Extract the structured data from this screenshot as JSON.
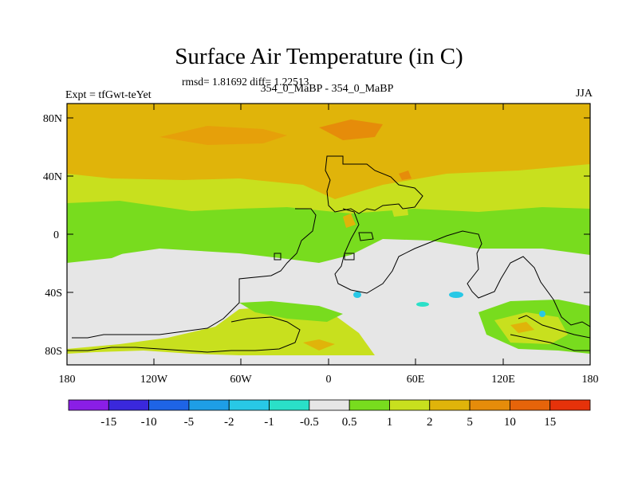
{
  "header": {
    "title": "Surface Air Temperature (in C)",
    "stats": "rmsd= 1.81692 diff= 1.22513",
    "experiment": "Expt = tfGwt-teYet",
    "case": "354_0_MaBP - 354_0_MaBP",
    "season": "JJA"
  },
  "axes": {
    "y_ticks": [
      "80N",
      "40N",
      "0",
      "40S",
      "80S"
    ],
    "x_ticks": [
      "180",
      "120W",
      "60W",
      "0",
      "60E",
      "120E",
      "180"
    ]
  },
  "colorbar": {
    "colors": [
      "#8a1ee6",
      "#3a28dc",
      "#1e64e6",
      "#1e9ee6",
      "#28c8e6",
      "#2ae0c8",
      "#e6e6e6",
      "#78dc1e",
      "#c8e01e",
      "#e0b40a",
      "#e68c0a",
      "#e6640a",
      "#e6320a"
    ],
    "labels": [
      "-15",
      "-10",
      "-5",
      "-2",
      "-1",
      "-0.5",
      "0.5",
      "1",
      "2",
      "5",
      "10",
      "15"
    ]
  }
}
